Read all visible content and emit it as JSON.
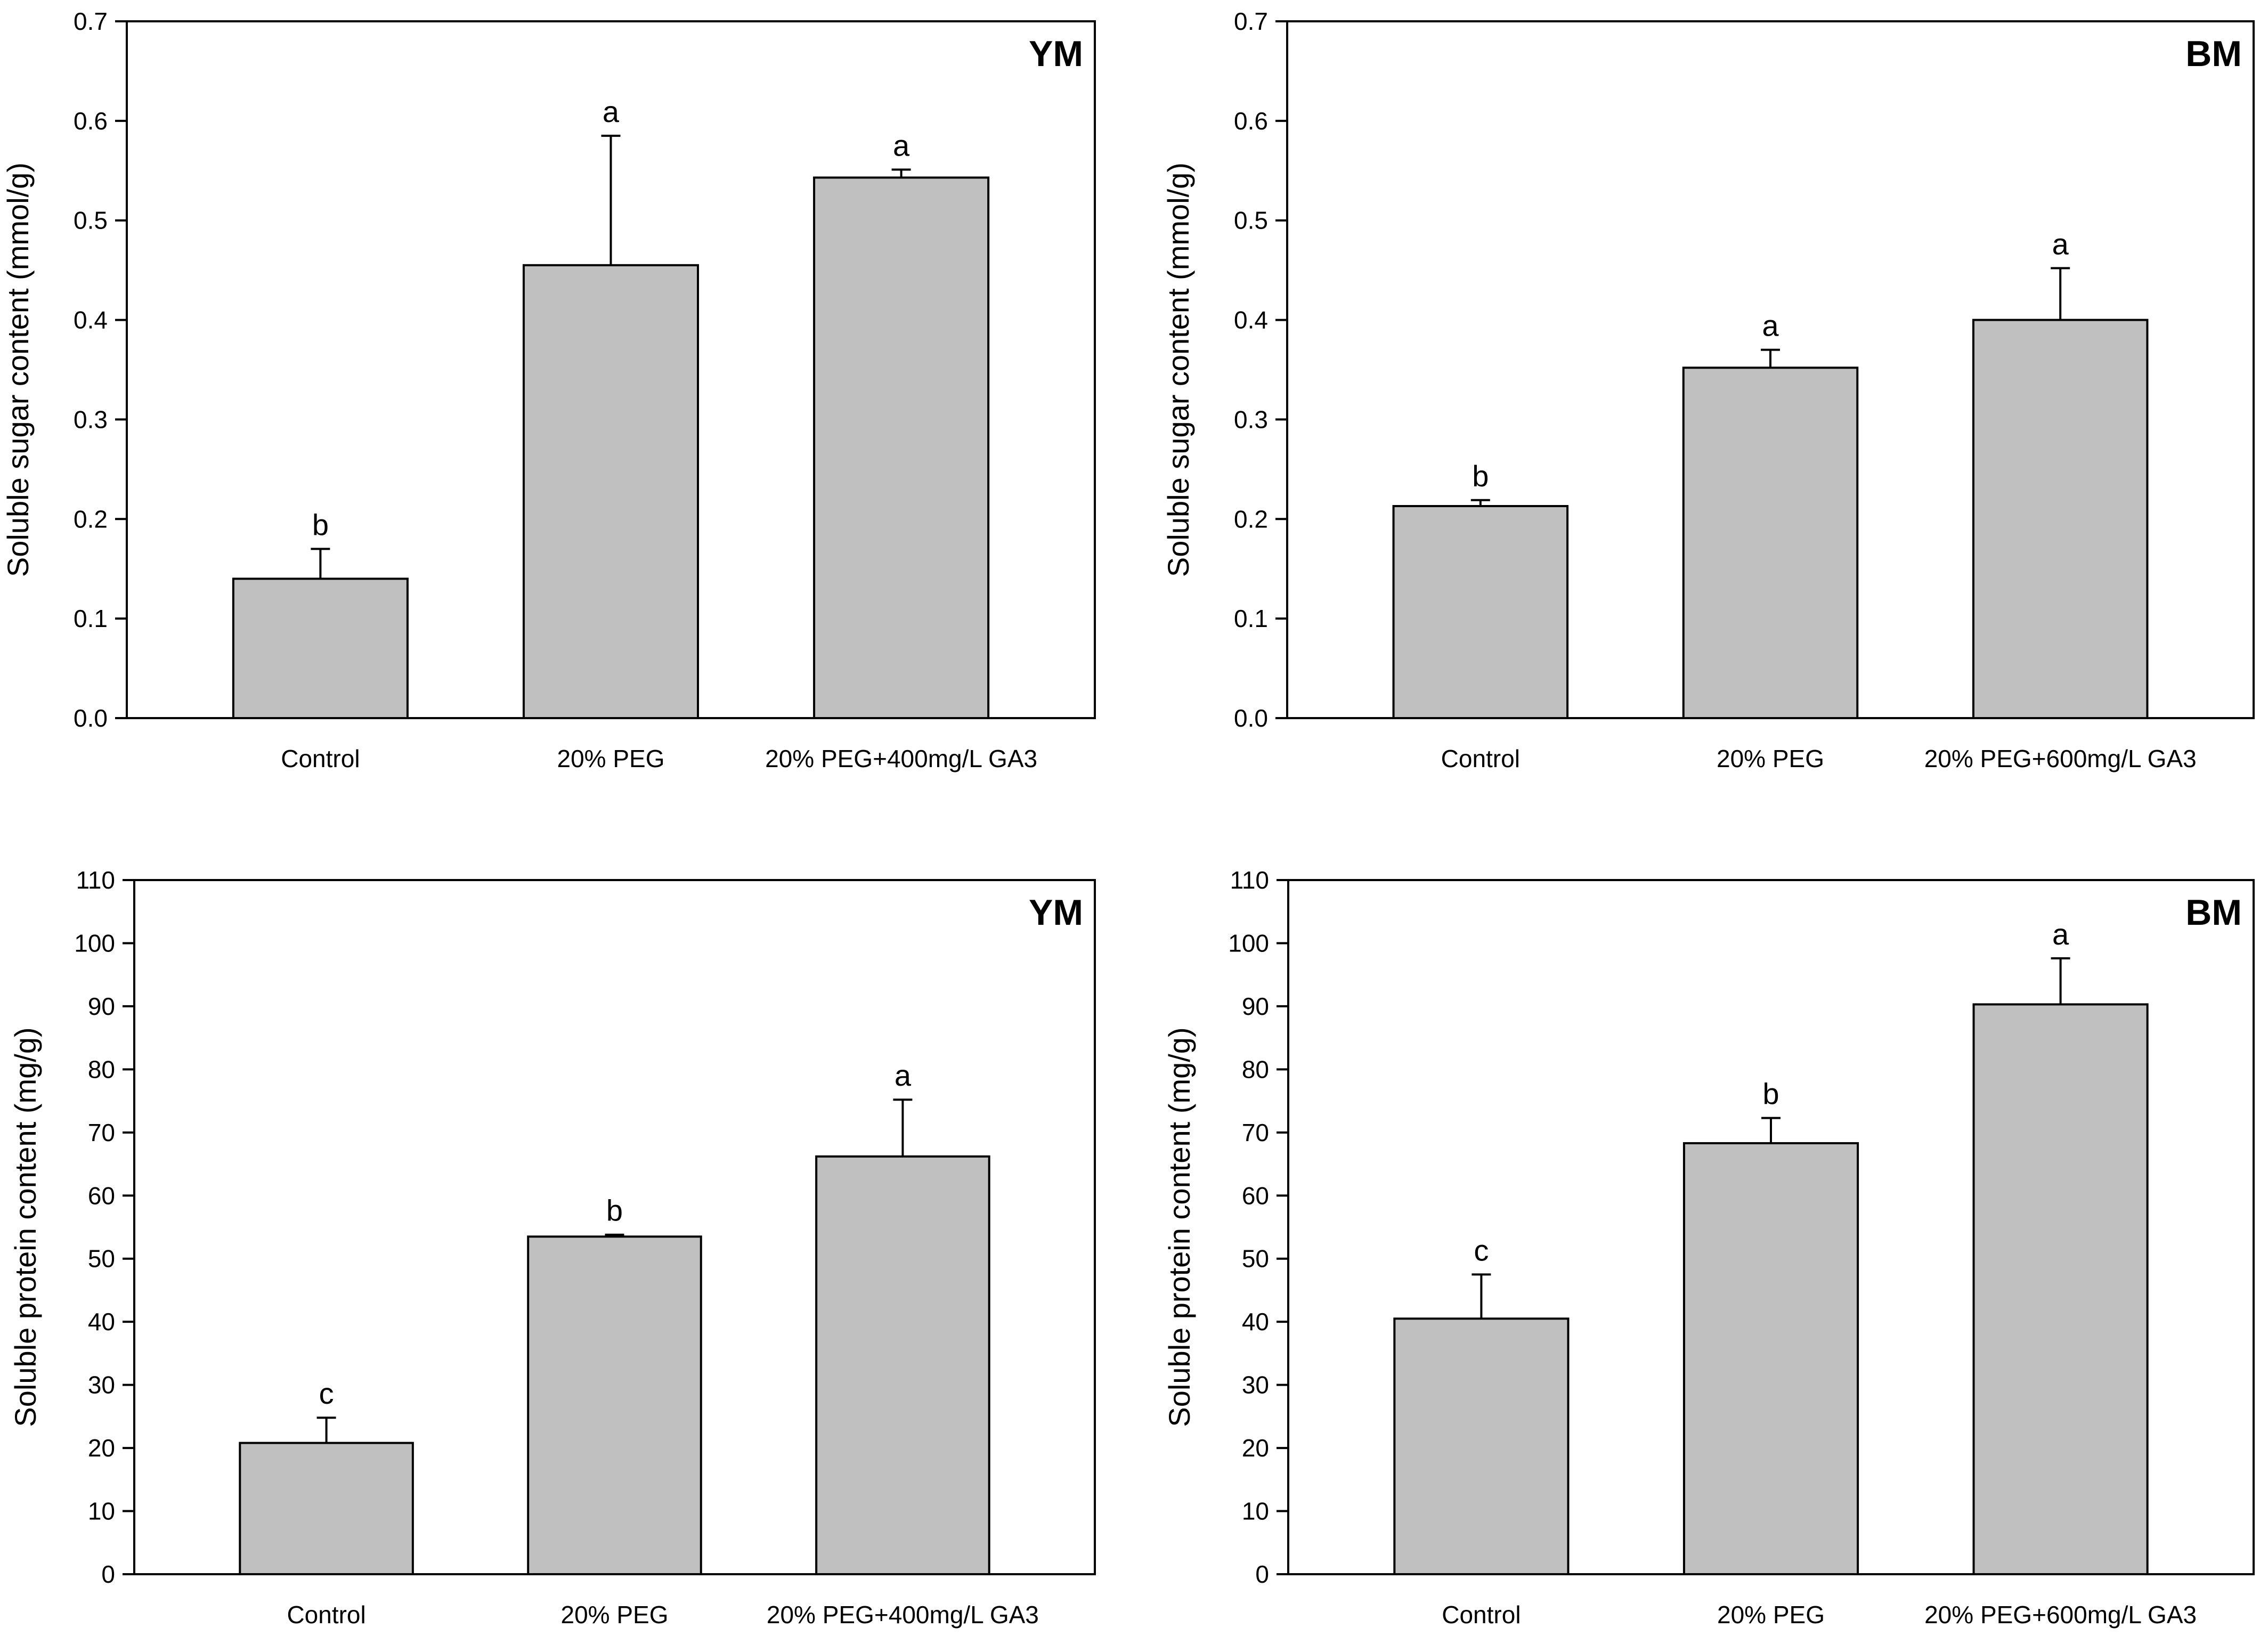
{
  "figure": {
    "title": ""
  },
  "chart_data": [
    {
      "type": "bar",
      "panel_label": "YM",
      "title": "",
      "xlabel": "",
      "ylabel": "Soluble sugar content (mmol/g)",
      "categories": [
        "Control",
        "20% PEG",
        "20% PEG+400mg/L GA3"
      ],
      "values": [
        0.14,
        0.455,
        0.543
      ],
      "errors": [
        0.03,
        0.13,
        0.008
      ],
      "significance": [
        "b",
        "a",
        "a"
      ],
      "ylim": [
        0,
        0.7
      ],
      "yticks": [
        0.0,
        0.1,
        0.2,
        0.3,
        0.4,
        0.5,
        0.6,
        0.7
      ],
      "ytick_labels": [
        "0.0",
        "0.1",
        "0.2",
        "0.3",
        "0.4",
        "0.5",
        "0.6",
        "0.7"
      ],
      "bar_color": "#c0c0c0",
      "grid": false
    },
    {
      "type": "bar",
      "panel_label": "BM",
      "title": "",
      "xlabel": "",
      "ylabel": "Soluble sugar content (mmol/g)",
      "categories": [
        "Control",
        "20% PEG",
        "20% PEG+600mg/L GA3"
      ],
      "values": [
        0.213,
        0.352,
        0.4
      ],
      "errors": [
        0.006,
        0.018,
        0.052
      ],
      "significance": [
        "b",
        "a",
        "a"
      ],
      "ylim": [
        0,
        0.7
      ],
      "yticks": [
        0.0,
        0.1,
        0.2,
        0.3,
        0.4,
        0.5,
        0.6,
        0.7
      ],
      "ytick_labels": [
        "0.0",
        "0.1",
        "0.2",
        "0.3",
        "0.4",
        "0.5",
        "0.6",
        "0.7"
      ],
      "bar_color": "#c0c0c0",
      "grid": false
    },
    {
      "type": "bar",
      "panel_label": "YM",
      "title": "",
      "xlabel": "",
      "ylabel": "Soluble protein content (mg/g)",
      "categories": [
        "Control",
        "20% PEG",
        "20% PEG+400mg/L GA3"
      ],
      "values": [
        20.8,
        53.5,
        66.2
      ],
      "errors": [
        4.0,
        0.3,
        9.0
      ],
      "significance": [
        "c",
        "b",
        "a"
      ],
      "ylim": [
        0,
        110
      ],
      "yticks": [
        0,
        10,
        20,
        30,
        40,
        50,
        60,
        70,
        80,
        90,
        100,
        110
      ],
      "ytick_labels": [
        "0",
        "10",
        "20",
        "30",
        "40",
        "50",
        "60",
        "70",
        "80",
        "90",
        "100",
        "110"
      ],
      "bar_color": "#c0c0c0",
      "grid": false
    },
    {
      "type": "bar",
      "panel_label": "BM",
      "title": "",
      "xlabel": "",
      "ylabel": "Soluble protein content (mg/g)",
      "categories": [
        "Control",
        "20% PEG",
        "20% PEG+600mg/L GA3"
      ],
      "values": [
        40.5,
        68.3,
        90.3
      ],
      "errors": [
        7.0,
        4.0,
        7.3
      ],
      "significance": [
        "c",
        "b",
        "a"
      ],
      "ylim": [
        0,
        110
      ],
      "yticks": [
        0,
        10,
        20,
        30,
        40,
        50,
        60,
        70,
        80,
        90,
        100,
        110
      ],
      "ytick_labels": [
        "0",
        "10",
        "20",
        "30",
        "40",
        "50",
        "60",
        "70",
        "80",
        "90",
        "100",
        "110"
      ],
      "bar_color": "#c0c0c0",
      "grid": false
    }
  ]
}
